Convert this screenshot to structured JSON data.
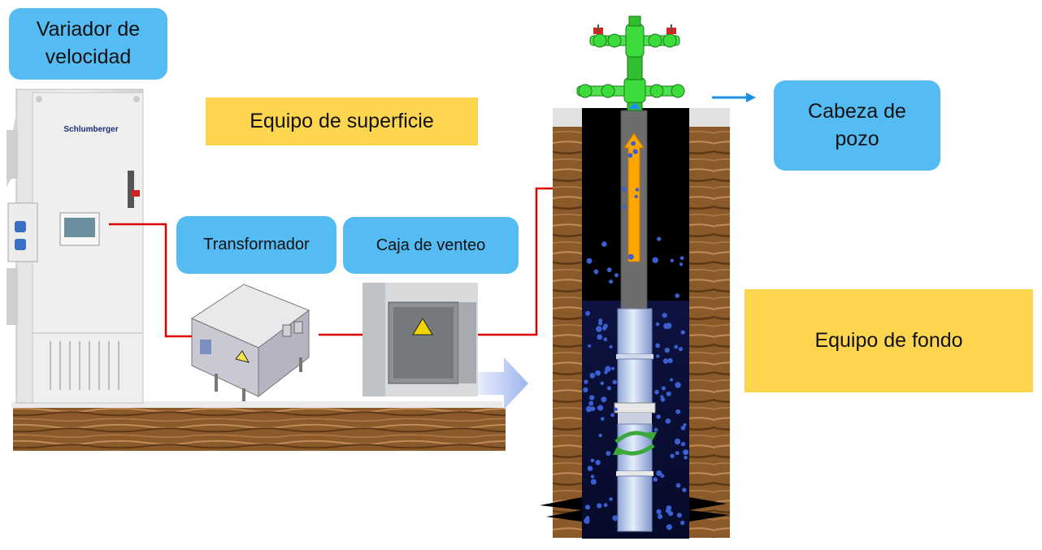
{
  "labels": {
    "drive": "Variador de velocidad",
    "surface": "Equipo de superficie",
    "transformer": "Transformador",
    "vent_box": "Caja de venteo",
    "wellhead": "Cabeza de pozo",
    "downhole": "Equipo de fondo"
  },
  "drive_brand": "Schlumberger",
  "colors": {
    "label_blue": "#55bcf3",
    "label_yellow": "#fdd54f",
    "cable": "#e00000",
    "earth": "#8a5a2b",
    "well_fluid_top": "#000000",
    "well_fluid_bottom": "#0a0f3c",
    "tubing": "#6d6d6d",
    "flow_arrow": "#ffa500",
    "wellhead_valves": "#3ddc3d",
    "bubbles": "#3a5fd0"
  },
  "icons": [
    "drive-cabinet-icon",
    "transformer-icon",
    "vent-box-icon",
    "wellhead-tree-icon",
    "flow-arrow-icon",
    "rotation-arrows-icon"
  ]
}
